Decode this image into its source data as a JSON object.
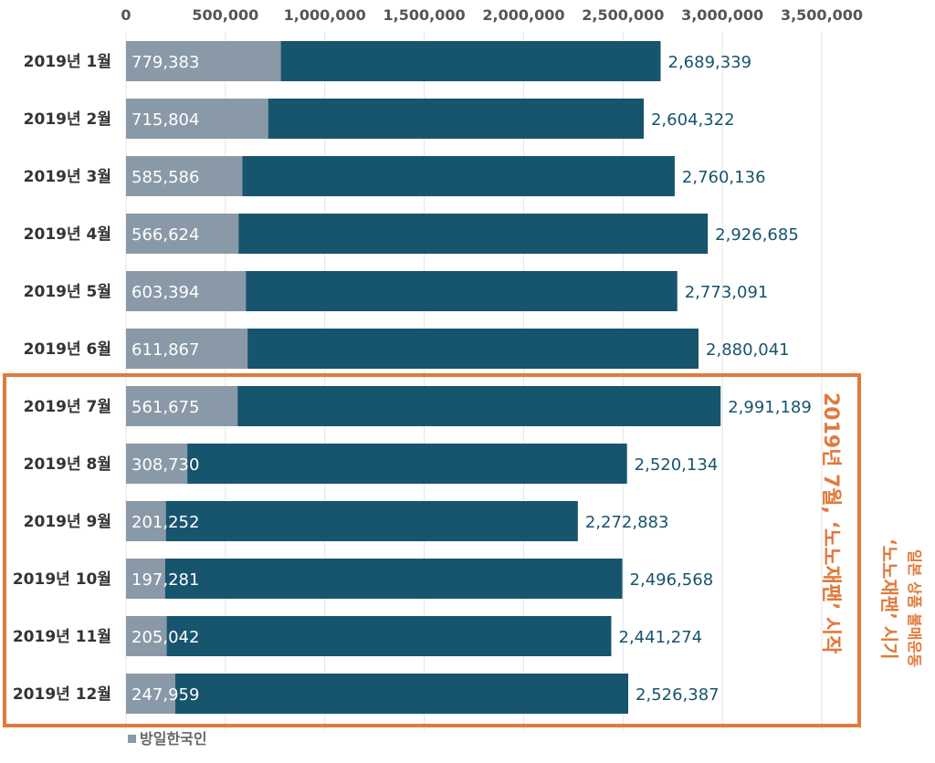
{
  "chart_data": {
    "type": "bar",
    "orientation": "horizontal",
    "categories": [
      "2019년 1월",
      "2019년 2월",
      "2019년 3월",
      "2019년 4월",
      "2019년 5월",
      "2019년 6월",
      "2019년 7월",
      "2019년 8월",
      "2019년 9월",
      "2019년 10월",
      "2019년 11월",
      "2019년 12월"
    ],
    "series": [
      {
        "name": "방일한국인",
        "color": "#8a99a7",
        "values": [
          779383,
          715804,
          585586,
          566624,
          603394,
          611867,
          561675,
          308730,
          201252,
          197281,
          205042,
          247959
        ],
        "labels": [
          "779,383",
          "715,804",
          "585,586",
          "566,624",
          "603,394",
          "611,867",
          "561,675",
          "308,730",
          "201,252",
          "197,281",
          "205,042",
          "247,959"
        ]
      },
      {
        "color": "#17546e",
        "values": [
          2689339,
          2604322,
          2760136,
          2926685,
          2773091,
          2880041,
          2991189,
          2520134,
          2272883,
          2496568,
          2441274,
          2526387
        ],
        "labels": [
          "2,689,339",
          "2,604,322",
          "2,760,136",
          "2,926,685",
          "2,773,091",
          "2,880,041",
          "2,991,189",
          "2,520,134",
          "2,272,883",
          "2,496,568",
          "2,441,274",
          "2,526,387"
        ]
      }
    ],
    "xlim": [
      0,
      3500000
    ],
    "xticks": [
      "0",
      "500,000",
      "1,000,000",
      "1,500,000",
      "2,000,000",
      "2,500,000",
      "3,000,000",
      "3,500,000"
    ],
    "xtick_values": [
      0,
      500000,
      1000000,
      1500000,
      2000000,
      2500000,
      3000000,
      3500000
    ],
    "grid": true,
    "legend_position": "bottom-left",
    "highlight": {
      "from": "2019년 7월",
      "to": "2019년 12월",
      "color": "#e07a3c"
    },
    "annotations": [
      "2019년 7월, ‘노노재팬’ 시작",
      "일본 상품 불매운동",
      "‘노노재팬’ 시기"
    ]
  }
}
